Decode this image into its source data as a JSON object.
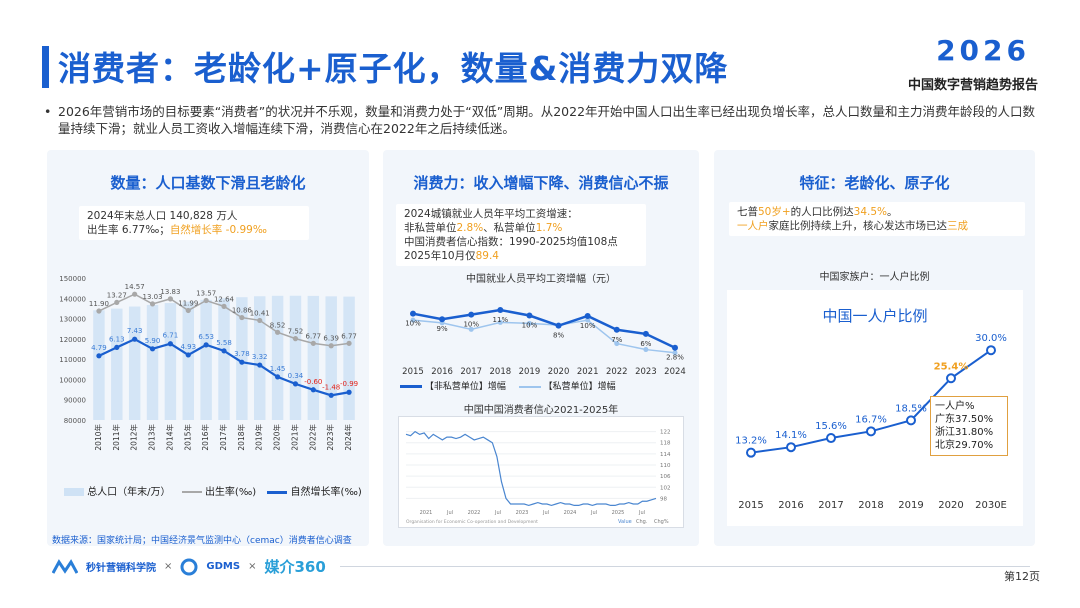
{
  "header": {
    "title": "消费者：老龄化+原子化，数量&消费力双降",
    "logo_year": "2026",
    "logo_sub": "中国数字营销趋势报告"
  },
  "summary": "2026年营销市场的目标要素“消费者”的状况并不乐观，数量和消费力处于“双低”周期。从2022年开始中国人口出生率已经出现负增长率，总人口数量和主力消费年龄段的人口数量持续下滑；就业人员工资收入增幅连续下滑，消费信心在2022年之后持续低迷。",
  "panel1": {
    "title": "数量：人口基数下滑且老龄化",
    "note_line1": "2024年末总人口  140,828 万人",
    "note_line2_a": "出生率  6.77‰；",
    "note_line2_b": "自然增长率 -0.99‰",
    "legend_bar": "总人口（年末/万）",
    "legend_birth": "出生率(‰)",
    "legend_growth": "自然增长率(‰)"
  },
  "panel2": {
    "title": "消费力：收入增幅下降、消费信心不振",
    "note_line1": "2024城镇就业人员年平均工资增速：",
    "note_line2_a": "非私营单位",
    "note_line2_b": "2.8%",
    "note_line2_c": "、私营单位",
    "note_line2_d": "1.7%",
    "note_line3": "中国消费者信心指数：1990-2025均值108点",
    "note_line4_a": "2025年10月仅",
    "note_line4_b": "89.4",
    "wage_chart_title": "中国就业人员平均工资增幅（元）",
    "legend_nonpriv": "【非私营单位】增幅",
    "legend_priv": "【私营单位】增幅",
    "conf_chart_title": "中国中国消费者信心2021-2025年",
    "conf_source": "Organisation for Economic Co-operation and Development",
    "conf_legend": [
      "Value",
      "Chg.",
      "Chg%"
    ]
  },
  "panel3": {
    "title": "特征：老龄化、原子化",
    "note_line1_a": "七普",
    "note_line1_b": "50岁+",
    "note_line1_c": "的人口比例达",
    "note_line1_d": "34.5%",
    "note_line1_e": "。",
    "note_line2_a": "一人户",
    "note_line2_b": "家庭比例持续上升，核心发达市场已达",
    "note_line2_c": "三成",
    "subtitle": "中国家族户：一人户比例",
    "chart_title": "中国一人户比例",
    "callout": [
      "一人户%",
      "广东37.50%",
      "浙江31.80%",
      "北京29.70%"
    ]
  },
  "footer": {
    "source": "数据来源：国家统计局；中国经济景气监测中心（cemac）消费者信心调查",
    "brand1": "秒针营销科学院",
    "brand2": "GDMS",
    "brand3": "媒介360",
    "page": "第12页"
  },
  "chart_data": [
    {
      "type": "bar+line",
      "categories": [
        "2010年",
        "2011年",
        "2012年",
        "2013年",
        "2014年",
        "2015年",
        "2016年",
        "2017年",
        "2018年",
        "2019年",
        "2020年",
        "2021年",
        "2022年",
        "2023年",
        "2024年"
      ],
      "y_ticks": [
        "150000",
        "140000",
        "130000",
        "120000",
        "110000",
        "100000",
        "90000",
        "80000"
      ],
      "ylim": [
        80000,
        150000
      ],
      "series": [
        {
          "name": "总人口（年末/万）",
          "type": "bar",
          "values": [
            134091,
            134916,
            135922,
            136726,
            137646,
            138326,
            139232,
            140011,
            140541,
            141008,
            141212,
            141260,
            141175,
            140967,
            140828
          ]
        },
        {
          "name": "出生率(‰)",
          "type": "line",
          "values": [
            11.9,
            13.27,
            14.57,
            13.03,
            13.83,
            11.99,
            13.57,
            12.64,
            10.86,
            10.41,
            8.52,
            7.52,
            6.77,
            6.39,
            6.77
          ],
          "labels": [
            "11.90",
            "13.27",
            "14.57",
            "13.03",
            "13.83",
            "11.99",
            "13.57",
            "12.64",
            "10.86",
            "10.41",
            "8.52",
            "7.52",
            "6.77",
            "6.39",
            "6.77"
          ]
        },
        {
          "name": "自然增长率(‰)",
          "type": "line",
          "values": [
            4.79,
            6.13,
            7.43,
            5.9,
            6.71,
            4.93,
            6.53,
            5.58,
            3.78,
            3.32,
            1.45,
            0.34,
            -0.6,
            -1.48,
            -0.99
          ],
          "labels": [
            "4.79",
            "6.13",
            "7.43",
            "5.90",
            "6.71",
            "4.93",
            "6.53",
            "5.58",
            "3.78",
            "3.32",
            "1.45",
            "0.34",
            "-0.60",
            "-1.48",
            "-0.99"
          ]
        }
      ]
    },
    {
      "type": "line",
      "title": "中国就业人员平均工资增幅（元）",
      "categories": [
        "2015",
        "2016",
        "2017",
        "2018",
        "2019",
        "2020",
        "2021",
        "2022",
        "2023",
        "2024"
      ],
      "series": [
        {
          "name": "【非私营单位】增幅",
          "values": [
            10.2,
            9.0,
            10.0,
            11.0,
            9.8,
            7.6,
            9.7,
            6.7,
            5.8,
            2.8
          ]
        },
        {
          "name": "【私营单位】增幅",
          "values": [
            8.8,
            8.2,
            6.8,
            8.3,
            8.1,
            7.7,
            8.8,
            3.7,
            2.4,
            1.7
          ]
        }
      ],
      "labels": [
        "10%",
        "9%",
        "10%",
        "11%",
        "10%",
        "8%",
        "10%",
        "7%",
        "6%",
        "2.8%"
      ]
    },
    {
      "type": "line",
      "title": "中国中国消费者信心2021-2025年",
      "x_ticks": [
        "2021",
        "Jul",
        "2022",
        "Jul",
        "2023",
        "Jul",
        "2024",
        "Jul",
        "2025",
        "Jul"
      ],
      "y_ticks": [
        "122",
        "118",
        "114",
        "110",
        "106",
        "102",
        "98"
      ],
      "ylim": [
        96,
        124
      ],
      "series": [
        {
          "name": "Value",
          "values": [
            121,
            120.5,
            122,
            121,
            121.5,
            119.5,
            121,
            120,
            119,
            120,
            120,
            119.5,
            120,
            121,
            120,
            119,
            119.5,
            120,
            119,
            118,
            113,
            104,
            98,
            96,
            96,
            96,
            96,
            95.5,
            96,
            96.5,
            96,
            96,
            95.5,
            96,
            96.5,
            96,
            96,
            95.5,
            95.5,
            96,
            96,
            95.5,
            96,
            96,
            96,
            95.5,
            95.5,
            96,
            96,
            96.5,
            96,
            96,
            97,
            97,
            97.5,
            98
          ]
        }
      ]
    },
    {
      "type": "line",
      "title": "中国一人户比例",
      "categories": [
        "2015",
        "2016",
        "2017",
        "2018",
        "2019",
        "2020",
        "2030E"
      ],
      "series": [
        {
          "name": "",
          "values": [
            13.2,
            14.1,
            15.6,
            16.7,
            18.5,
            25.4,
            30.0
          ]
        }
      ],
      "labels": [
        "13.2%",
        "14.1%",
        "15.6%",
        "16.7%",
        "18.5%",
        "25.4%",
        "30.0%"
      ]
    }
  ]
}
